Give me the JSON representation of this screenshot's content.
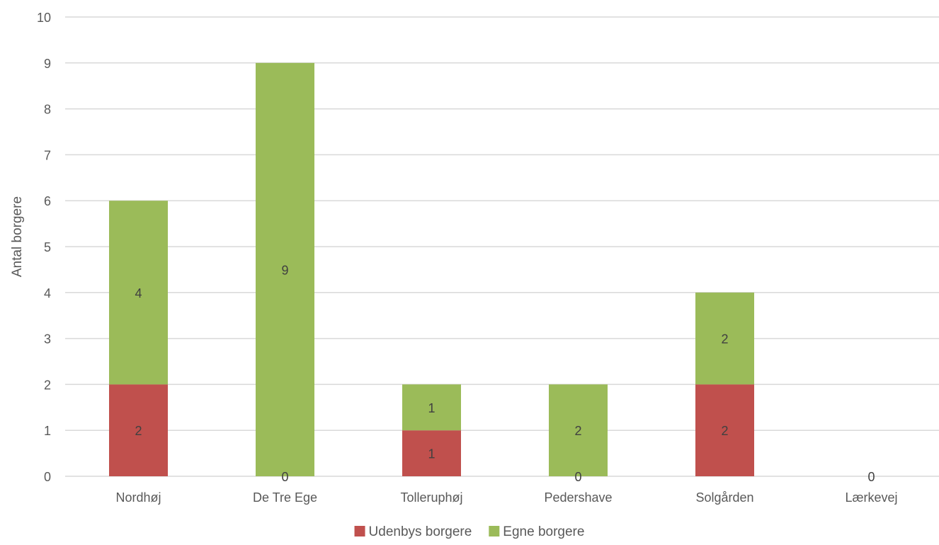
{
  "chart_data": {
    "type": "bar",
    "stacked": true,
    "categories": [
      "Nordhøj",
      "De Tre Ege",
      "Tolleruphøj",
      "Pedershave",
      "Solgården",
      "Lærkevej"
    ],
    "series": [
      {
        "name": "Udenbys borgere",
        "values": [
          2,
          0,
          1,
          0,
          2,
          0
        ],
        "color": "#C0504D"
      },
      {
        "name": "Egne borgere",
        "values": [
          4,
          9,
          1,
          2,
          2,
          0
        ],
        "color": "#9BBB59"
      }
    ],
    "data_labels": [
      {
        "category": "Nordhøj",
        "series": "Udenbys borgere",
        "text": "2"
      },
      {
        "category": "Nordhøj",
        "series": "Egne borgere",
        "text": "4"
      },
      {
        "category": "De Tre Ege",
        "series": "Udenbys borgere",
        "text": "0"
      },
      {
        "category": "De Tre Ege",
        "series": "Egne borgere",
        "text": "9"
      },
      {
        "category": "Tolleruphøj",
        "series": "Udenbys borgere",
        "text": "1"
      },
      {
        "category": "Tolleruphøj",
        "series": "Egne borgere",
        "text": "1"
      },
      {
        "category": "Pedershave",
        "series": "Udenbys borgere",
        "text": "0"
      },
      {
        "category": "Pedershave",
        "series": "Egne borgere",
        "text": "2"
      },
      {
        "category": "Solgården",
        "series": "Udenbys borgere",
        "text": "2"
      },
      {
        "category": "Solgården",
        "series": "Egne borgere",
        "text": "2"
      },
      {
        "category": "Lærkevej",
        "series": "Udenbys borgere",
        "text": "0"
      }
    ],
    "title": "",
    "xlabel": "",
    "ylabel": "Antal borgere",
    "ylim": [
      0,
      10
    ],
    "yticks": [
      "0",
      "1",
      "2",
      "3",
      "4",
      "5",
      "6",
      "7",
      "8",
      "9",
      "10"
    ],
    "grid": true,
    "gridline_color": "#D9D9D9",
    "legend_position": "bottom"
  }
}
